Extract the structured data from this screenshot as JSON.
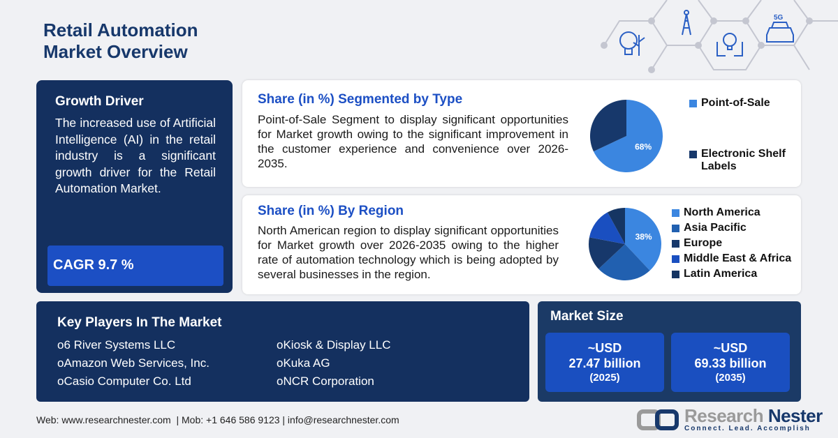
{
  "title": [
    "Retail Automation",
    "Market Overview"
  ],
  "growth_driver": {
    "heading": "Growth Driver",
    "text": "The increased use of Artificial Intelligence (AI) in the retail industry is a significant growth driver for the Retail Automation Market.",
    "cagr": "CAGR 9.7 %"
  },
  "type_card": {
    "heading": "Share (in %) Segmented by Type",
    "text": "Point-of-Sale Segment to display significant opportunities for Market growth owing to the significant improvement in the customer experience and convenience over 2026-2035."
  },
  "region_card": {
    "heading": "Share (in %) By Region",
    "text": "North American region to display significant opportunities for Market growth over 2026-2035 owing to the higher rate of automation technology which is being adopted by several businesses in the region."
  },
  "chart_data": [
    {
      "type": "pie",
      "categories": [
        "Point-of-Sale",
        "Electronic Shelf Labels"
      ],
      "values": [
        68,
        32
      ],
      "labels": [
        "68%",
        ""
      ],
      "colors": [
        "#3b86e0",
        "#17386b"
      ],
      "legend": "right"
    },
    {
      "type": "pie",
      "categories": [
        "North America",
        "Asia Pacific",
        "Europe",
        "Middle East & Africa",
        "Latin America"
      ],
      "values": [
        38,
        25,
        15,
        14,
        8
      ],
      "labels": [
        "38%",
        "",
        "",
        "",
        ""
      ],
      "colors": [
        "#3b86e0",
        "#2160b0",
        "#17386b",
        "#1a4fc0",
        "#153563"
      ],
      "legend": "right"
    }
  ],
  "key_players": {
    "heading": "Key Players In The Market",
    "items": [
      "6 River Systems LLC",
      "Amazon Web Services, Inc.",
      "Casio Computer Co. Ltd",
      "Kiosk & Display LLC",
      "Kuka AG",
      "NCR Corporation"
    ]
  },
  "market_size": {
    "heading": "Market Size",
    "boxes": [
      {
        "prefix": "~USD",
        "value": "27.47 billion",
        "year": "(2025)"
      },
      {
        "prefix": "~USD",
        "value": "69.33 billion",
        "year": "(2035)"
      }
    ]
  },
  "footer": {
    "contact": "Web: www.researchnester.com  | Mob: +1 646 586 9123 | info@researchnester.com",
    "logo_name_1": "Research",
    "logo_name_2": "Nester",
    "tagline": "Connect. Lead. Accomplish"
  },
  "icons": [
    "eco-energy-icon",
    "cell-tower-icon",
    "innovation-hands-icon",
    "5g-car-icon"
  ]
}
